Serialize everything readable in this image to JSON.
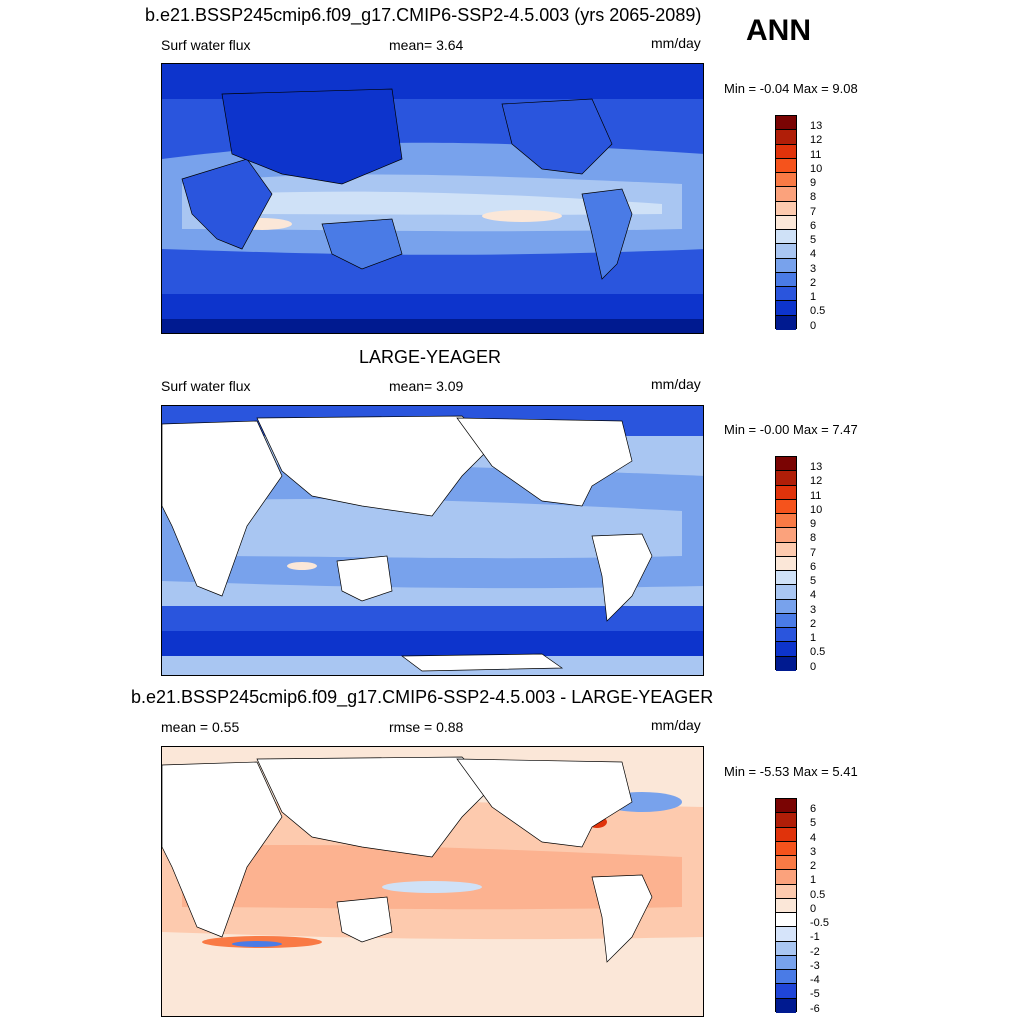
{
  "season": "ANN",
  "panels": [
    {
      "title": "b.e21.BSSP245cmip6.f09_g17.CMIP6-SSP2-4.5.003 (yrs 2065-2089)",
      "left_label": "Surf water flux",
      "mid_label": "mean=   3.64",
      "units": "mm/day",
      "minmax": "Min =  -0.04 Max =   9.08",
      "colorbar_labels": [
        "13",
        "12",
        "11",
        "10",
        "9",
        "8",
        "7",
        "6",
        "5",
        "4",
        "3",
        "2",
        "1",
        "0.5",
        "0"
      ],
      "colorbar_colors": [
        "#7a0403",
        "#b01e08",
        "#e0330b",
        "#f5531c",
        "#f97a45",
        "#fba27c",
        "#fdcaae",
        "#fbe7d8",
        "#cfe1f7",
        "#a9c6f2",
        "#78a2ec",
        "#4a7be6",
        "#2a55dd",
        "#0d34cc",
        "#001a90"
      ]
    },
    {
      "title": "LARGE-YEAGER",
      "left_label": "Surf water flux",
      "mid_label": "mean=   3.09",
      "units": "mm/day",
      "minmax": "Min =  -0.00 Max =   7.47",
      "colorbar_labels": [
        "13",
        "12",
        "11",
        "10",
        "9",
        "8",
        "7",
        "6",
        "5",
        "4",
        "3",
        "2",
        "1",
        "0.5",
        "0"
      ],
      "colorbar_colors": [
        "#7a0403",
        "#b01e08",
        "#e0330b",
        "#f5531c",
        "#f97a45",
        "#fba27c",
        "#fdcaae",
        "#fbe7d8",
        "#cfe1f7",
        "#a9c6f2",
        "#78a2ec",
        "#4a7be6",
        "#2a55dd",
        "#0d34cc",
        "#001a90"
      ]
    },
    {
      "title": "b.e21.BSSP245cmip6.f09_g17.CMIP6-SSP2-4.5.003 - LARGE-YEAGER",
      "left_label": "mean =   0.55",
      "mid_label": "rmse =   0.88",
      "units": "mm/day",
      "minmax": "Min =  -5.53 Max =   5.41",
      "colorbar_labels": [
        "6",
        "5",
        "4",
        "3",
        "2",
        "1",
        "0.5",
        "0",
        "-0.5",
        "-1",
        "-2",
        "-3",
        "-4",
        "-5",
        "-6"
      ],
      "colorbar_colors": [
        "#7a0403",
        "#b01e08",
        "#e0330b",
        "#f5531c",
        "#f97a45",
        "#fba27c",
        "#fdcaae",
        "#fbe7d8",
        "#ffffff",
        "#d6e4fa",
        "#a9c6f2",
        "#78a2ec",
        "#4a7be6",
        "#1f45d8",
        "#001a90"
      ]
    }
  ]
}
